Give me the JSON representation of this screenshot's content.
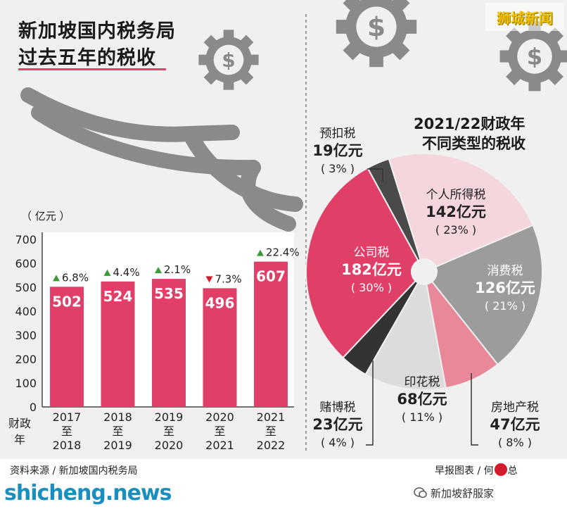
{
  "header": {
    "title_line1": "新加坡国内税务局",
    "title_line2": "过去五年的税收"
  },
  "watermark": "狮城新闻",
  "footer": {
    "source": "资料来源 / 新加坡国内税务局",
    "credit": "早报图表 / 何",
    "credit_suffix": "总",
    "site": "shicheng.news",
    "wechat_label": "新加坡舒服家"
  },
  "colors": {
    "bar": "#e04068",
    "up": "#3a9a3a",
    "down": "#d41a2a",
    "gear": "#8a8a8a"
  },
  "icons": [
    "dollar-gear-icon",
    "open-hand-icon",
    "wechat-icon"
  ],
  "chart_data": [
    {
      "type": "bar",
      "unit_label": "（ 亿元 ）",
      "x_axis_label": [
        "财政",
        "年"
      ],
      "ylim": [
        0,
        700
      ],
      "y_ticks": [
        0,
        100,
        200,
        300,
        400,
        500,
        600,
        700
      ],
      "grid": false,
      "categories": [
        {
          "from": "2017",
          "sep": "至",
          "to": "2018"
        },
        {
          "from": "2018",
          "sep": "至",
          "to": "2019"
        },
        {
          "from": "2019",
          "sep": "至",
          "to": "2020"
        },
        {
          "from": "2020",
          "sep": "至",
          "to": "2021"
        },
        {
          "from": "2021",
          "sep": "至",
          "to": "2022"
        }
      ],
      "values": [
        502,
        524,
        535,
        496,
        607
      ],
      "changes": [
        {
          "direction": "up",
          "label": "6.8%"
        },
        {
          "direction": "up",
          "label": "4.4%"
        },
        {
          "direction": "up",
          "label": "2.1%"
        },
        {
          "direction": "down",
          "label": "7.3%"
        },
        {
          "direction": "up",
          "label": "22.4%"
        }
      ]
    },
    {
      "type": "pie",
      "title_line1": "2021/22财政年",
      "title_line2": "不同类型的税收",
      "slices": [
        {
          "name": "预扣税",
          "amount": "19亿元",
          "value": 19,
          "percent": "( 3% )",
          "color": "#4a4a4a"
        },
        {
          "name": "个人所得税",
          "amount": "142亿元",
          "value": 142,
          "percent": "( 23% )",
          "color": "#f5d6dc"
        },
        {
          "name": "消费税",
          "amount": "126亿元",
          "value": 126,
          "percent": "( 21% )",
          "color": "#9c9c9c"
        },
        {
          "name": "房地产税",
          "amount": "47亿元",
          "value": 47,
          "percent": "( 8% )",
          "color": "#e88898"
        },
        {
          "name": "印花税",
          "amount": "68亿元",
          "value": 68,
          "percent": "( 11% )",
          "color": "#dcdcdc"
        },
        {
          "name": "赌博税",
          "amount": "23亿元",
          "value": 23,
          "percent": "( 4% )",
          "color": "#333333"
        },
        {
          "name": "公司税",
          "amount": "182亿元",
          "value": 182,
          "percent": "( 30% )",
          "color": "#e04068"
        }
      ]
    }
  ]
}
